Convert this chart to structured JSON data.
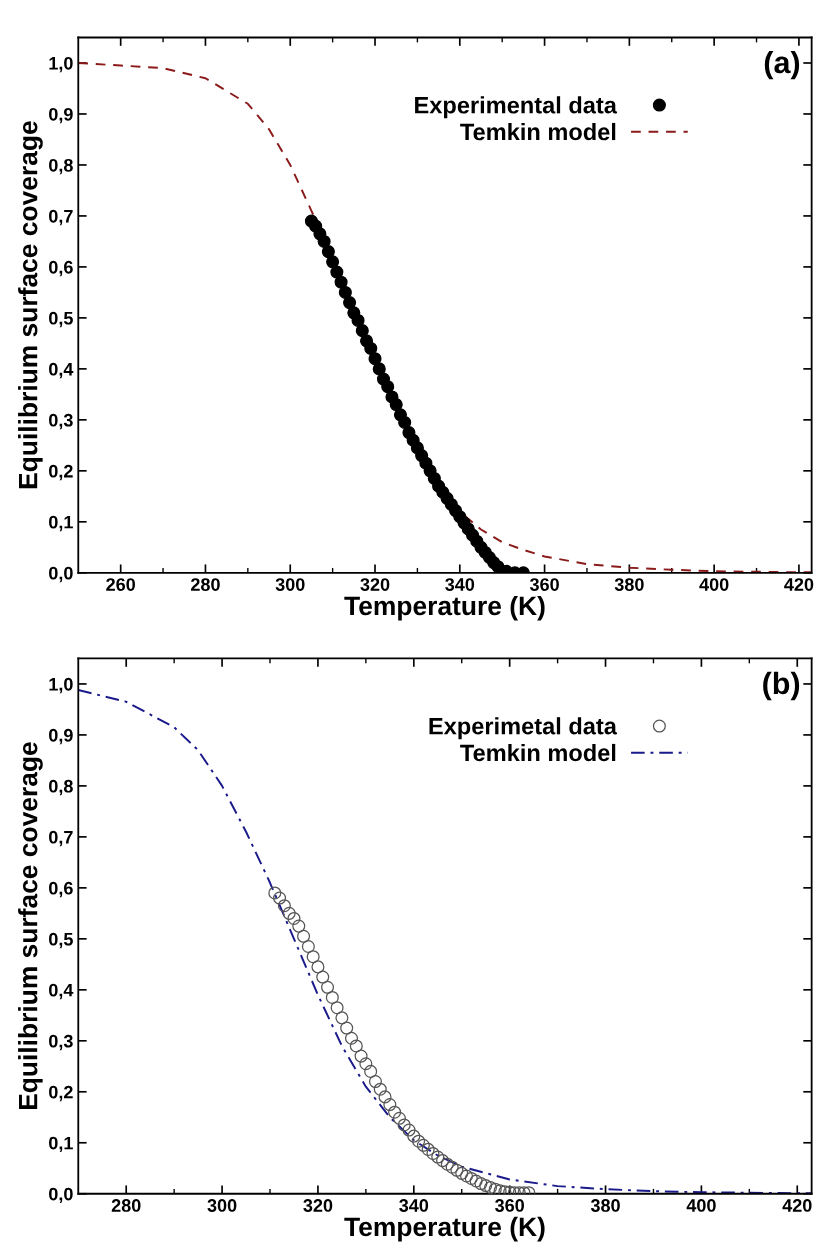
{
  "chart_data": [
    {
      "type": "line",
      "xlabel": "Temperature (K)",
      "ylabel": "Equilibrium surface coverage",
      "annotations": [
        "(a)"
      ],
      "xlim": [
        250,
        423
      ],
      "xticks": [
        260,
        280,
        300,
        320,
        340,
        360,
        380,
        400,
        420
      ],
      "ylim": [
        0,
        1.05
      ],
      "yticks": [
        {
          "value": 0,
          "label": "0,0"
        },
        {
          "value": 0.1,
          "label": "0,1"
        },
        {
          "value": 0.2,
          "label": "0,2"
        },
        {
          "value": 0.3,
          "label": "0,3"
        },
        {
          "value": 0.4,
          "label": "0,4"
        },
        {
          "value": 0.5,
          "label": "0,5"
        },
        {
          "value": 0.6,
          "label": "0,6"
        },
        {
          "value": 0.7,
          "label": "0,7"
        },
        {
          "value": 0.8,
          "label": "0,8"
        },
        {
          "value": 0.9,
          "label": "0,9"
        },
        {
          "value": 1.0,
          "label": "1,0"
        }
      ],
      "legend": "top right",
      "grid": false,
      "series": [
        {
          "name": "Experimental data",
          "type": "scatter",
          "marker": "circle",
          "color": "#000000",
          "x": [
            305,
            306,
            307,
            308,
            309,
            310,
            311,
            312,
            313,
            314,
            315,
            316,
            317,
            318,
            319,
            320,
            321,
            322,
            323,
            324,
            325,
            326,
            327,
            328,
            329,
            330,
            331,
            332,
            333,
            334,
            335,
            336,
            337,
            338,
            339,
            340,
            341,
            342,
            343,
            344,
            345,
            346,
            347,
            348,
            349,
            351,
            353,
            355
          ],
          "values": [
            0.69,
            0.68,
            0.665,
            0.65,
            0.63,
            0.61,
            0.59,
            0.57,
            0.55,
            0.53,
            0.51,
            0.495,
            0.475,
            0.455,
            0.44,
            0.42,
            0.4,
            0.38,
            0.365,
            0.345,
            0.33,
            0.31,
            0.295,
            0.275,
            0.26,
            0.245,
            0.23,
            0.215,
            0.2,
            0.185,
            0.17,
            0.158,
            0.146,
            0.134,
            0.122,
            0.11,
            0.098,
            0.086,
            0.074,
            0.062,
            0.05,
            0.04,
            0.03,
            0.02,
            0.012,
            0.003,
            0,
            0
          ]
        },
        {
          "name": "Temkin model",
          "line_style": "dashed",
          "marker": "none",
          "color": "#8b1a1a",
          "x": [
            250,
            260,
            270,
            280,
            290,
            295,
            300,
            305,
            310,
            315,
            320,
            325,
            330,
            335,
            340,
            345,
            350,
            355,
            360,
            370,
            380,
            390,
            400,
            410,
            420,
            423
          ],
          "values": [
            1.0,
            0.995,
            0.99,
            0.97,
            0.92,
            0.87,
            0.8,
            0.71,
            0.62,
            0.52,
            0.415,
            0.315,
            0.23,
            0.17,
            0.12,
            0.085,
            0.06,
            0.045,
            0.032,
            0.017,
            0.01,
            0.006,
            0.003,
            0.002,
            0.001,
            0.001
          ]
        }
      ]
    },
    {
      "type": "line",
      "xlabel": "Temperature (K)",
      "ylabel": "Equilibrium surface coverage",
      "annotations": [
        "(b)"
      ],
      "xlim": [
        270,
        423
      ],
      "xticks": [
        280,
        300,
        320,
        340,
        360,
        380,
        400,
        420
      ],
      "ylim": [
        0,
        1.05
      ],
      "yticks": [
        {
          "value": 0,
          "label": "0,0"
        },
        {
          "value": 0.1,
          "label": "0,1"
        },
        {
          "value": 0.2,
          "label": "0,2"
        },
        {
          "value": 0.3,
          "label": "0,3"
        },
        {
          "value": 0.4,
          "label": "0,4"
        },
        {
          "value": 0.5,
          "label": "0,5"
        },
        {
          "value": 0.6,
          "label": "0,6"
        },
        {
          "value": 0.7,
          "label": "0,7"
        },
        {
          "value": 0.8,
          "label": "0,8"
        },
        {
          "value": 0.9,
          "label": "0,9"
        },
        {
          "value": 1.0,
          "label": "1,0"
        }
      ],
      "legend": "top right",
      "grid": false,
      "series": [
        {
          "name": "Experimetal data",
          "type": "scatter",
          "marker": "circle",
          "color": "#555555",
          "x": [
            311,
            312,
            313,
            314,
            315,
            316,
            317,
            318,
            319,
            320,
            321,
            322,
            323,
            324,
            325,
            326,
            327,
            328,
            329,
            330,
            331,
            332,
            333,
            334,
            335,
            336,
            337,
            338,
            339,
            340,
            341,
            342,
            343,
            344,
            345,
            346,
            347,
            348,
            349,
            350,
            351,
            352,
            353,
            354,
            355,
            356,
            357,
            358,
            359,
            360,
            361,
            362,
            363,
            364
          ],
          "values": [
            0.59,
            0.58,
            0.565,
            0.55,
            0.54,
            0.525,
            0.505,
            0.485,
            0.465,
            0.445,
            0.425,
            0.405,
            0.385,
            0.365,
            0.345,
            0.325,
            0.305,
            0.29,
            0.27,
            0.255,
            0.24,
            0.22,
            0.205,
            0.19,
            0.175,
            0.16,
            0.148,
            0.135,
            0.125,
            0.113,
            0.103,
            0.095,
            0.087,
            0.079,
            0.072,
            0.065,
            0.058,
            0.052,
            0.046,
            0.04,
            0.035,
            0.03,
            0.025,
            0.02,
            0.016,
            0.012,
            0.009,
            0.006,
            0.004,
            0.003,
            0.002,
            0.002,
            0.002,
            0.002
          ]
        },
        {
          "name": "Temkin model",
          "line_style": "dashdot",
          "marker": "none",
          "color": "#1a1a8b",
          "x": [
            270,
            280,
            290,
            295,
            300,
            305,
            310,
            315,
            320,
            325,
            330,
            335,
            340,
            345,
            350,
            360,
            370,
            380,
            390,
            400,
            420,
            423
          ],
          "values": [
            0.988,
            0.965,
            0.915,
            0.87,
            0.8,
            0.71,
            0.61,
            0.5,
            0.39,
            0.29,
            0.21,
            0.15,
            0.105,
            0.075,
            0.053,
            0.028,
            0.015,
            0.009,
            0.005,
            0.003,
            0.001,
            0.001
          ]
        }
      ]
    }
  ]
}
